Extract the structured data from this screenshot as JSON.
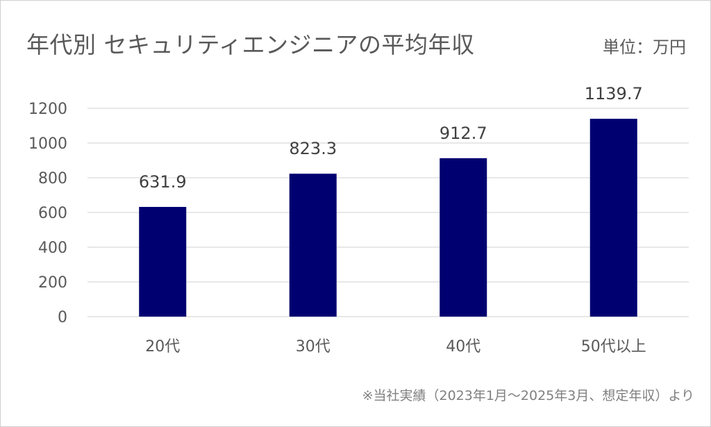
{
  "title": "年代別 セキュリティエンジニアの平均年収",
  "unit_label": "単位：万円",
  "source_note": "※当社実績（2023年1月～2025年3月、想定年収）より",
  "colors": {
    "bar": "#000070",
    "grid": "#d9d9d9",
    "text": "#595959"
  },
  "chart_data": {
    "type": "bar",
    "title": "年代別 セキュリティエンジニアの平均年収",
    "categories": [
      "20代",
      "30代",
      "40代",
      "50代以上"
    ],
    "values": [
      631.9,
      823.3,
      912.7,
      1139.7
    ],
    "data_labels": [
      "631.9",
      "823.3",
      "912.7",
      "1139.7"
    ],
    "yticks": [
      "0",
      "200",
      "400",
      "600",
      "800",
      "1000",
      "1200"
    ],
    "ylim": [
      0,
      1200
    ],
    "xlabel": "",
    "ylabel": "",
    "grid": true,
    "legend": "none"
  }
}
